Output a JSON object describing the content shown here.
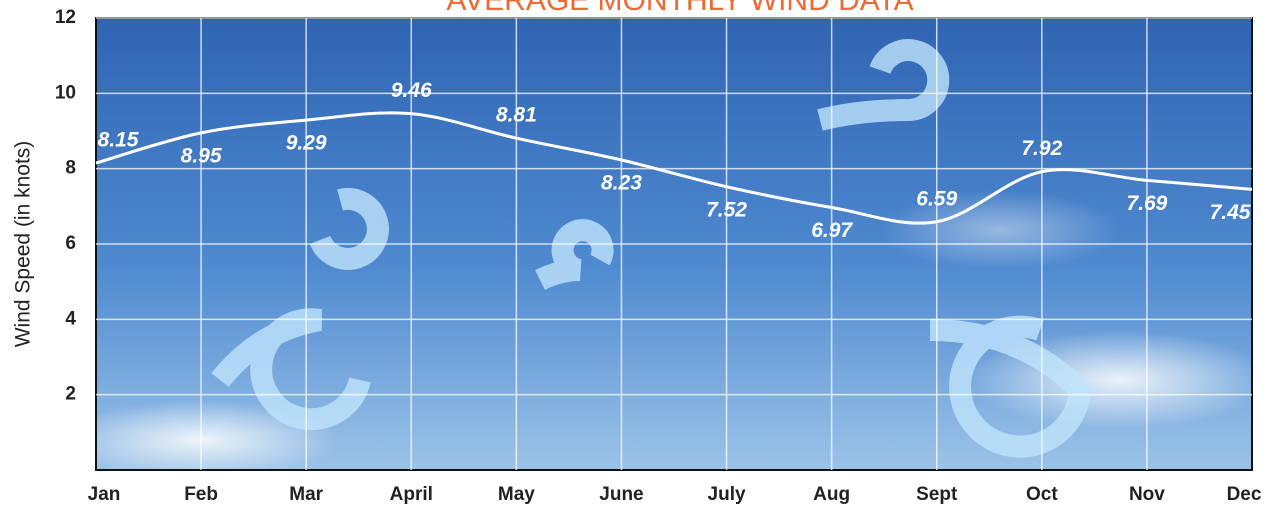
{
  "chart_data": {
    "type": "line",
    "title": "AVERAGE MONTHLY WIND DATA",
    "y_label": "Wind Speed (in knots)",
    "categories": [
      "Jan",
      "Feb",
      "Mar",
      "April",
      "May",
      "June",
      "July",
      "Aug",
      "Sept",
      "Oct",
      "Nov",
      "Dec"
    ],
    "values": [
      8.15,
      8.95,
      9.29,
      9.46,
      8.81,
      8.23,
      7.52,
      6.97,
      6.59,
      7.92,
      7.69,
      7.45
    ],
    "color": "#ffffff",
    "ylim": [
      0,
      12
    ],
    "yticks": [
      2,
      4,
      6,
      8,
      10,
      12
    ],
    "grid": true
  }
}
